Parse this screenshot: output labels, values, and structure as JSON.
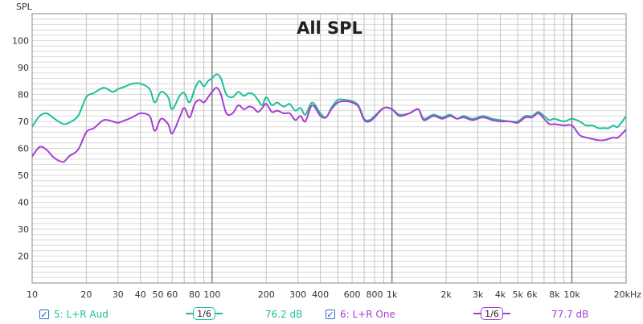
{
  "chart_data": {
    "type": "line",
    "title": "All SPL",
    "ylabel": "SPL",
    "xlabel": "",
    "x_scale": "log",
    "xlim": [
      10,
      20000
    ],
    "ylim": [
      10,
      110
    ],
    "grid": true,
    "y_ticks": [
      20,
      30,
      40,
      50,
      60,
      70,
      80,
      90,
      100
    ],
    "x_ticks": [
      {
        "v": 10,
        "label": "10"
      },
      {
        "v": 20,
        "label": "20"
      },
      {
        "v": 30,
        "label": "30"
      },
      {
        "v": 40,
        "label": "40"
      },
      {
        "v": 50,
        "label": "50"
      },
      {
        "v": 60,
        "label": "60"
      },
      {
        "v": 80,
        "label": "80"
      },
      {
        "v": 100,
        "label": "100"
      },
      {
        "v": 200,
        "label": "200"
      },
      {
        "v": 300,
        "label": "300"
      },
      {
        "v": 400,
        "label": "400"
      },
      {
        "v": 600,
        "label": "600"
      },
      {
        "v": 800,
        "label": "800"
      },
      {
        "v": 1000,
        "label": "1k"
      },
      {
        "v": 2000,
        "label": "2k"
      },
      {
        "v": 3000,
        "label": "3k"
      },
      {
        "v": 4000,
        "label": "4k"
      },
      {
        "v": 5000,
        "label": "5k"
      },
      {
        "v": 6000,
        "label": "6k"
      },
      {
        "v": 8000,
        "label": "8k"
      },
      {
        "v": 10000,
        "label": "10k"
      },
      {
        "v": 20000,
        "label": "20kHz"
      }
    ],
    "series": [
      {
        "name": "5: L+R Aud",
        "color": "#1fbf9c",
        "x": [
          10,
          11,
          12,
          13,
          14,
          15,
          16,
          18,
          20,
          22,
          25,
          28,
          30,
          33,
          36,
          40,
          45,
          48,
          52,
          57,
          60,
          66,
          70,
          75,
          80,
          85,
          90,
          95,
          100,
          106,
          112,
          120,
          130,
          140,
          150,
          160,
          170,
          180,
          190,
          200,
          215,
          230,
          250,
          270,
          290,
          310,
          330,
          360,
          400,
          430,
          460,
          500,
          550,
          600,
          650,
          700,
          750,
          800,
          900,
          1000,
          1100,
          1250,
          1400,
          1500,
          1700,
          1900,
          2100,
          2300,
          2500,
          2800,
          3200,
          3600,
          4000,
          4500,
          5000,
          5500,
          6000,
          6500,
          7000,
          7500,
          8000,
          9000,
          10000,
          11000,
          12000,
          13000,
          14000,
          15000,
          16000,
          17000,
          18000,
          20000
        ],
        "y": [
          68,
          72,
          73,
          71.5,
          70,
          69,
          69.5,
          72,
          79,
          80.5,
          82.5,
          81,
          82,
          83,
          84,
          84,
          82,
          77,
          81,
          79,
          74.5,
          79.5,
          80.5,
          77,
          82,
          85,
          83,
          85,
          86,
          87.5,
          86,
          80,
          79,
          81,
          79.5,
          80.5,
          80,
          78,
          76,
          79,
          76,
          77,
          75.5,
          76.5,
          74,
          75,
          72.5,
          77,
          73,
          71.5,
          75,
          78,
          78,
          77.5,
          76,
          71,
          70.5,
          72,
          75,
          74.5,
          72.5,
          73,
          74.5,
          71,
          72.5,
          71.5,
          72.5,
          71,
          72,
          71,
          72,
          71,
          70.5,
          70,
          70,
          72,
          72,
          73.5,
          72,
          70.5,
          71,
          70,
          71,
          70,
          68.5,
          68.5,
          67.5,
          67.5,
          67.5,
          68.5,
          68,
          72
        ]
      },
      {
        "name": "6: L+R One",
        "color": "#a63fd0",
        "x": [
          10,
          11,
          12,
          13,
          14,
          15,
          16,
          18,
          20,
          22,
          25,
          28,
          30,
          33,
          36,
          40,
          45,
          48,
          52,
          57,
          60,
          66,
          70,
          75,
          80,
          85,
          90,
          95,
          100,
          106,
          112,
          120,
          130,
          140,
          150,
          160,
          170,
          180,
          190,
          200,
          215,
          230,
          250,
          270,
          290,
          310,
          330,
          360,
          400,
          430,
          460,
          500,
          550,
          600,
          650,
          700,
          750,
          800,
          900,
          1000,
          1100,
          1250,
          1400,
          1500,
          1700,
          1900,
          2100,
          2300,
          2500,
          2800,
          3200,
          3600,
          4000,
          4500,
          5000,
          5500,
          6000,
          6500,
          7000,
          7500,
          8000,
          9000,
          10000,
          11000,
          12000,
          13000,
          14000,
          15000,
          16000,
          17000,
          18000,
          20000
        ],
        "y": [
          57,
          60.5,
          59.5,
          57,
          55.5,
          55,
          57,
          59.5,
          66,
          67.5,
          70.5,
          70,
          69.5,
          70.5,
          71.5,
          73,
          72,
          66.5,
          71,
          69,
          65.5,
          71.5,
          75,
          71.5,
          76.5,
          78,
          77,
          79,
          81,
          82.5,
          80,
          73,
          73,
          76,
          74.5,
          75.5,
          75,
          73.5,
          75,
          76.5,
          73.5,
          74,
          73,
          73,
          70.5,
          72,
          70,
          76,
          72,
          71.5,
          74.5,
          77,
          77.5,
          77,
          75.5,
          70.5,
          70,
          71.5,
          75,
          74.5,
          72,
          73,
          74.5,
          70.5,
          72,
          71,
          72,
          71,
          71.5,
          70.5,
          71.5,
          70.5,
          70,
          70,
          69.5,
          71.5,
          71.5,
          73,
          71,
          69,
          69,
          68.5,
          68.5,
          65,
          64,
          63.5,
          63,
          63,
          63.5,
          64,
          64,
          67
        ]
      }
    ]
  },
  "legend": [
    {
      "checked": true,
      "label": "5: L+R Aud",
      "smoothing": "1/6",
      "reading": "76.2 dB",
      "color": "#1fbf9c"
    },
    {
      "checked": true,
      "label": "6: L+R One",
      "smoothing": "1/6",
      "reading": "77.7 dB",
      "color": "#a63fd0"
    }
  ],
  "icons": {
    "checkbox_checked": "check-icon"
  }
}
